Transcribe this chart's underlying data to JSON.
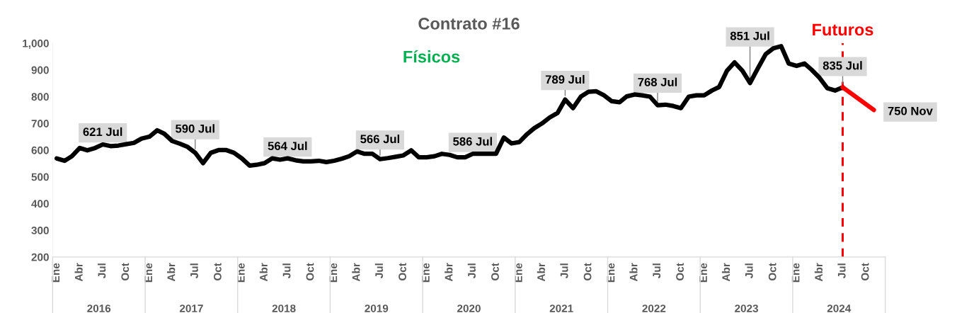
{
  "chart_data": {
    "type": "line",
    "title": "Contrato #16",
    "xlim": [
      "2015-12-16",
      "2024-12-16"
    ],
    "ylim": [
      200,
      1000
    ],
    "yticks": [
      200,
      300,
      400,
      500,
      600,
      700,
      800,
      900,
      {
        "value": 1000,
        "label": "1,000"
      }
    ],
    "xticks": [
      {
        "value": "2016-01",
        "label": "Ene"
      },
      {
        "value": "2016-04",
        "label": "Abr"
      },
      {
        "value": "2016-07",
        "label": "Jul"
      },
      {
        "value": "2016-10",
        "label": "Oct"
      },
      {
        "value": "2017-01",
        "label": "Ene"
      },
      {
        "value": "2017-04",
        "label": "Abr"
      },
      {
        "value": "2017-07",
        "label": "Jul"
      },
      {
        "value": "2017-10",
        "label": "Oct"
      },
      {
        "value": "2018-01",
        "label": "Ene"
      },
      {
        "value": "2018-04",
        "label": "Abr"
      },
      {
        "value": "2018-07",
        "label": "Jul"
      },
      {
        "value": "2018-10",
        "label": "Oct"
      },
      {
        "value": "2019-01",
        "label": "Ene"
      },
      {
        "value": "2019-04",
        "label": "Abr"
      },
      {
        "value": "2019-07",
        "label": "Jul"
      },
      {
        "value": "2019-10",
        "label": "Oct"
      },
      {
        "value": "2020-01",
        "label": "Ene"
      },
      {
        "value": "2020-04",
        "label": "Abr"
      },
      {
        "value": "2020-07",
        "label": "Jul"
      },
      {
        "value": "2020-10",
        "label": "Oct"
      },
      {
        "value": "2021-01",
        "label": "Ene"
      },
      {
        "value": "2021-04",
        "label": "Abr"
      },
      {
        "value": "2021-07",
        "label": "Jul"
      },
      {
        "value": "2021-10",
        "label": "Oct"
      },
      {
        "value": "2022-01",
        "label": "Ene"
      },
      {
        "value": "2022-04",
        "label": "Abr"
      },
      {
        "value": "2022-07",
        "label": "Jul"
      },
      {
        "value": "2022-10",
        "label": "Oct"
      },
      {
        "value": "2023-01",
        "label": "Ene"
      },
      {
        "value": "2023-04",
        "label": "Abr"
      },
      {
        "value": "2023-07",
        "label": "Jul"
      },
      {
        "value": "2023-10",
        "label": "Oct"
      },
      {
        "value": "2024-01",
        "label": "Ene"
      },
      {
        "value": "2024-04",
        "label": "Abr"
      },
      {
        "value": "2024-07",
        "label": "Jul"
      },
      {
        "value": "2024-10",
        "label": "Oct"
      }
    ],
    "series": [
      {
        "color": "#000000",
        "x": [
          "2016-01",
          "2016-02",
          "2016-03",
          "2016-04",
          "2016-05",
          "2016-06",
          "2016-07",
          "2016-08",
          "2016-09",
          "2016-10",
          "2016-11",
          "2016-12",
          "2017-01",
          "2017-02",
          "2017-03",
          "2017-04",
          "2017-05",
          "2017-06",
          "2017-07",
          "2017-08",
          "2017-09",
          "2017-10",
          "2017-11",
          "2017-12",
          "2018-01",
          "2018-02",
          "2018-03",
          "2018-04",
          "2018-05",
          "2018-06",
          "2018-07",
          "2018-08",
          "2018-09",
          "2018-10",
          "2018-11",
          "2018-12",
          "2019-01",
          "2019-02",
          "2019-03",
          "2019-04",
          "2019-05",
          "2019-06",
          "2019-07",
          "2019-08",
          "2019-09",
          "2019-10",
          "2019-11",
          "2019-12",
          "2020-01",
          "2020-02",
          "2020-03",
          "2020-04",
          "2020-05",
          "2020-06",
          "2020-07",
          "2020-08",
          "2020-09",
          "2020-10",
          "2020-11",
          "2020-12",
          "2021-01",
          "2021-02",
          "2021-03",
          "2021-04",
          "2021-05",
          "2021-06",
          "2021-07",
          "2021-08",
          "2021-09",
          "2021-10",
          "2021-11",
          "2021-12",
          "2022-01",
          "2022-02",
          "2022-03",
          "2022-04",
          "2022-05",
          "2022-06",
          "2022-07",
          "2022-08",
          "2022-09",
          "2022-10",
          "2022-11",
          "2022-12",
          "2023-01",
          "2023-02",
          "2023-03",
          "2023-04",
          "2023-05",
          "2023-06",
          "2023-07",
          "2023-08",
          "2023-09",
          "2023-10",
          "2023-11",
          "2023-12",
          "2024-01",
          "2024-02",
          "2024-03",
          "2024-04",
          "2024-05",
          "2024-06",
          "2024-07"
        ],
        "values": [
          569,
          560,
          577,
          608,
          599,
          608,
          621,
          615,
          617,
          622,
          627,
          643,
          650,
          674,
          661,
          634,
          624,
          612,
          590,
          551,
          590,
          600,
          600,
          590,
          569,
          542,
          545,
          551,
          569,
          564,
          569,
          562,
          558,
          558,
          560,
          555,
          560,
          568,
          577,
          595,
          586,
          586,
          566,
          570,
          575,
          580,
          599,
          573,
          573,
          577,
          586,
          582,
          573,
          573,
          586,
          586,
          586,
          586,
          647,
          625,
          630,
          660,
          682,
          700,
          722,
          739,
          789,
          757,
          800,
          818,
          820,
          805,
          783,
          779,
          801,
          808,
          805,
          800,
          768,
          770,
          765,
          757,
          800,
          805,
          805,
          823,
          836,
          897,
          928,
          897,
          851,
          906,
          959,
          981,
          989,
          924,
          915,
          924,
          900,
          870,
          832,
          823,
          835
        ]
      },
      {
        "color": "#ff0000",
        "x": [
          "2024-07",
          "2024-11"
        ],
        "values": [
          835,
          750
        ]
      }
    ],
    "line_style": "solid",
    "marker": "none",
    "grid": false,
    "ref_lines": [
      {
        "axis": "x",
        "value": "2024-07",
        "label": "Futuros",
        "color": "#ff0000",
        "line_style": "dashed"
      }
    ],
    "annotations": [
      "Físicos",
      {
        "text": "621 Jul",
        "x": "2016-07",
        "y": 621
      },
      {
        "text": "590 Jul",
        "x": "2017-07",
        "y": 590
      },
      {
        "text": "564 Jul",
        "x": "2018-07",
        "y": 564
      },
      {
        "text": "566 Jul",
        "x": "2019-07",
        "y": 566
      },
      {
        "text": "586 Jul",
        "x": "2020-07",
        "y": 586
      },
      {
        "text": "789 Jul",
        "x": "2021-07",
        "y": 789
      },
      {
        "text": "768 Jul",
        "x": "2022-07",
        "y": 768
      },
      {
        "text": "851 Jul",
        "x": "2023-07",
        "y": 851
      },
      {
        "text": "835 Jul",
        "x": "2024-07",
        "y": 835
      },
      {
        "text": "750 Nov",
        "x": "2024-11",
        "y": 750
      },
      "2016",
      "2017",
      "2018",
      "2019",
      "2020",
      "2021",
      "2022",
      "2023",
      "2024"
    ]
  }
}
